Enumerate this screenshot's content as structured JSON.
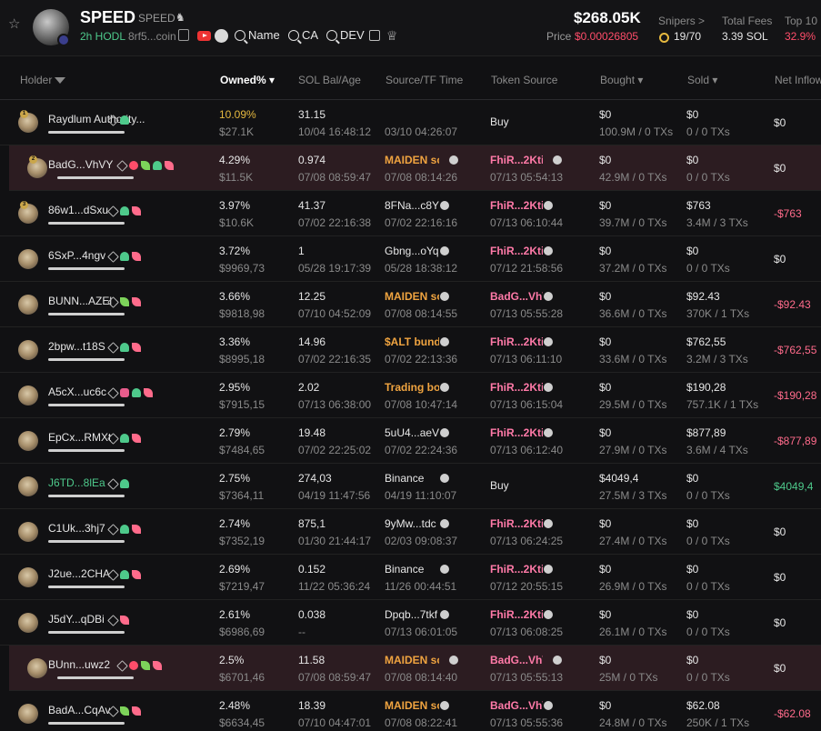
{
  "token": {
    "name": "SPEED",
    "symbol": "SPEED",
    "hodl": "2h HODL",
    "address": "8rf5...coin",
    "buttons": [
      "Name",
      "CA",
      "DEV"
    ]
  },
  "stats": {
    "market_cap": "$268.05K",
    "price_label": "Price",
    "price": "$0.00026805",
    "snipers_label": "Snipers >",
    "snipers_value": "19",
    "snipers_total": "/70",
    "fees_label": "Total Fees",
    "fees_value": "3.39 SOL",
    "top10_label": "Top 10",
    "top10_value": "32.9%"
  },
  "columns": {
    "holder": "Holder",
    "owned": "Owned% ▾",
    "sol_bal": "SOL Bal/Age",
    "source": "Source/TF Time",
    "token_source": "Token Source",
    "bought": "Bought ▾",
    "sold": "Sold ▾",
    "net_inflow": "Net Inflow"
  },
  "rows": [
    {
      "rank": "1",
      "name": "Raydlum Authority...",
      "name_style": "",
      "tags": [
        "edit",
        "user"
      ],
      "owned": "10.09%",
      "owned_style": "gold",
      "usd": "$27.1K",
      "sol": "31.15",
      "age": "10/04 16:48:12",
      "source": "",
      "source_style": "",
      "tf": "03/10 04:26:07",
      "tsrc": "Buy",
      "tsrc_style": "plain",
      "tst": "",
      "bought": "$0",
      "btx": "100.9M / 0 TXs",
      "sold": "$0",
      "stx": "0 / 0 TXs",
      "net": "$0",
      "net_style": "",
      "hl": false
    },
    {
      "rank": "2",
      "name": "BadG...VhVY",
      "name_style": "",
      "tags": [
        "edit",
        "red",
        "leaf",
        "user",
        "pink"
      ],
      "owned": "4.29%",
      "owned_style": "",
      "usd": "$11.5K",
      "sol": "0.974",
      "age": "07/08 08:59:47",
      "source": "MAIDEN sc",
      "source_style": "orange",
      "tf": "07/08 08:14:26",
      "tsrc": "FhiR...2Kti",
      "tsrc_style": "",
      "tst": "07/13 05:54:13",
      "bought": "$0",
      "btx": "42.9M / 0 TXs",
      "sold": "$0",
      "stx": "0 / 0 TXs",
      "net": "$0",
      "net_style": "",
      "hl": true
    },
    {
      "rank": "3",
      "name": "86w1...dSxu",
      "name_style": "",
      "tags": [
        "edit",
        "user",
        "pink"
      ],
      "owned": "3.97%",
      "owned_style": "",
      "usd": "$10.6K",
      "sol": "41.37",
      "age": "07/02 22:16:38",
      "source": "8FNa...c8Y",
      "source_style": "",
      "tf": "07/02 22:16:16",
      "tsrc": "FhiR...2Kti",
      "tsrc_style": "",
      "tst": "07/13 06:10:44",
      "bought": "$0",
      "btx": "39.7M / 0 TXs",
      "sold": "$763",
      "stx": "3.4M / 3 TXs",
      "net": "-$763",
      "net_style": "neg",
      "hl": false
    },
    {
      "rank": "",
      "name": "6SxP...4ngv",
      "name_style": "",
      "tags": [
        "edit",
        "user",
        "pink"
      ],
      "owned": "3.72%",
      "owned_style": "",
      "usd": "$9969,73",
      "sol": "1",
      "age": "05/28 19:17:39",
      "source": "Gbng...oYq",
      "source_style": "",
      "tf": "05/28 18:38:12",
      "tsrc": "FhiR...2Kti",
      "tsrc_style": "",
      "tst": "07/12 21:58:56",
      "bought": "$0",
      "btx": "37.2M / 0 TXs",
      "sold": "$0",
      "stx": "0 / 0 TXs",
      "net": "$0",
      "net_style": "",
      "hl": false
    },
    {
      "rank": "",
      "name": "BUNN...AZEl",
      "name_style": "",
      "tags": [
        "edit",
        "leaf",
        "pink"
      ],
      "owned": "3.66%",
      "owned_style": "",
      "usd": "$9818,98",
      "sol": "12.25",
      "age": "07/10 04:52:09",
      "source": "MAIDEN sc",
      "source_style": "orange",
      "tf": "07/08 08:14:55",
      "tsrc": "BadG...Vh\\",
      "tsrc_style": "",
      "tst": "07/13 05:55:28",
      "bought": "$0",
      "btx": "36.6M / 0 TXs",
      "sold": "$92.43",
      "stx": "370K / 1 TXs",
      "net": "-$92.43",
      "net_style": "neg",
      "hl": false
    },
    {
      "rank": "",
      "name": "2bpw...t18S",
      "name_style": "",
      "tags": [
        "edit",
        "user",
        "pink"
      ],
      "owned": "3.36%",
      "owned_style": "",
      "usd": "$8995,18",
      "sol": "14.96",
      "age": "07/02 22:16:35",
      "source": "$ALT bund",
      "source_style": "orange",
      "tf": "07/02 22:13:36",
      "tsrc": "FhiR...2Kti",
      "tsrc_style": "",
      "tst": "07/13 06:11:10",
      "bought": "$0",
      "btx": "33.6M / 0 TXs",
      "sold": "$762,55",
      "stx": "3.2M / 3 TXs",
      "net": "-$762,55",
      "net_style": "neg",
      "hl": false
    },
    {
      "rank": "",
      "name": "A5cX...uc6c",
      "name_style": "",
      "tags": [
        "edit",
        "mask",
        "user",
        "pink"
      ],
      "owned": "2.95%",
      "owned_style": "",
      "usd": "$7915,15",
      "sol": "2.02",
      "age": "07/13 06:38:00",
      "source": "Trading bo",
      "source_style": "orange",
      "tf": "07/08 10:47:14",
      "tsrc": "FhiR...2Kti",
      "tsrc_style": "",
      "tst": "07/13 06:15:04",
      "bought": "$0",
      "btx": "29.5M / 0 TXs",
      "sold": "$190,28",
      "stx": "757.1K / 1 TXs",
      "net": "-$190,28",
      "net_style": "neg",
      "hl": false
    },
    {
      "rank": "",
      "name": "EpCx...RMXt",
      "name_style": "",
      "tags": [
        "edit",
        "user",
        "pink"
      ],
      "owned": "2.79%",
      "owned_style": "",
      "usd": "$7484,65",
      "sol": "19.48",
      "age": "07/02 22:25:02",
      "source": "5uU4...aeV",
      "source_style": "",
      "tf": "07/02 22:24:36",
      "tsrc": "FhiR...2Kti",
      "tsrc_style": "",
      "tst": "07/13 06:12:40",
      "bought": "$0",
      "btx": "27.9M / 0 TXs",
      "sold": "$877,89",
      "stx": "3.6M / 4 TXs",
      "net": "-$877,89",
      "net_style": "neg",
      "hl": false
    },
    {
      "rank": "",
      "name": "J6TD...8lEa",
      "name_style": "green",
      "tags": [
        "edit",
        "user"
      ],
      "owned": "2.75%",
      "owned_style": "",
      "usd": "$7364,11",
      "sol": "274,03",
      "age": "04/19 11:47:56",
      "source": "Binance",
      "source_style": "",
      "tf": "04/19 11:10:07",
      "tsrc": "Buy",
      "tsrc_style": "plain",
      "tst": "",
      "bought": "$4049,4",
      "btx": "27.5M / 3 TXs",
      "sold": "$0",
      "stx": "0 / 0 TXs",
      "net": "$4049,4",
      "net_style": "pos",
      "hl": false
    },
    {
      "rank": "",
      "name": "C1Uk...3hj7",
      "name_style": "",
      "tags": [
        "edit",
        "user",
        "pink"
      ],
      "owned": "2.74%",
      "owned_style": "",
      "usd": "$7352,19",
      "sol": "875,1",
      "age": "01/30 21:44:17",
      "source": "9yMw...tdc",
      "source_style": "",
      "tf": "02/03 09:08:37",
      "tsrc": "FhiR...2Kti",
      "tsrc_style": "",
      "tst": "07/13 06:24:25",
      "bought": "$0",
      "btx": "27.4M / 0 TXs",
      "sold": "$0",
      "stx": "0 / 0 TXs",
      "net": "$0",
      "net_style": "",
      "hl": false
    },
    {
      "rank": "",
      "name": "J2ue...2CHA",
      "name_style": "",
      "tags": [
        "edit",
        "user",
        "pink"
      ],
      "owned": "2.69%",
      "owned_style": "",
      "usd": "$7219,47",
      "sol": "0.152",
      "age": "11/22 05:36:24",
      "source": "Binance",
      "source_style": "",
      "tf": "11/26 00:44:51",
      "tsrc": "FhiR...2Kti",
      "tsrc_style": "",
      "tst": "07/12 20:55:15",
      "bought": "$0",
      "btx": "26.9M / 0 TXs",
      "sold": "$0",
      "stx": "0 / 0 TXs",
      "net": "$0",
      "net_style": "",
      "hl": false
    },
    {
      "rank": "",
      "name": "J5dY...qDBi",
      "name_style": "",
      "tags": [
        "edit",
        "pink"
      ],
      "owned": "2.61%",
      "owned_style": "",
      "usd": "$6986,69",
      "sol": "0.038",
      "age": "--",
      "source": "Dpqb...7tkf",
      "source_style": "",
      "tf": "07/13 06:01:05",
      "tsrc": "FhiR...2Kti",
      "tsrc_style": "",
      "tst": "07/13 06:08:25",
      "bought": "$0",
      "btx": "26.1M / 0 TXs",
      "sold": "$0",
      "stx": "0 / 0 TXs",
      "net": "$0",
      "net_style": "",
      "hl": false
    },
    {
      "rank": "",
      "name": "BUnn...uwz2",
      "name_style": "",
      "tags": [
        "edit",
        "red",
        "leaf",
        "pink"
      ],
      "owned": "2.5%",
      "owned_style": "",
      "usd": "$6701,46",
      "sol": "11.58",
      "age": "07/08 08:59:47",
      "source": "MAIDEN sc",
      "source_style": "orange",
      "tf": "07/08 08:14:40",
      "tsrc": "BadG...Vh\\",
      "tsrc_style": "",
      "tst": "07/13 05:55:13",
      "bought": "$0",
      "btx": "25M / 0 TXs",
      "sold": "$0",
      "stx": "0 / 0 TXs",
      "net": "$0",
      "net_style": "",
      "hl": true
    },
    {
      "rank": "",
      "name": "BadA...CqAv",
      "name_style": "",
      "tags": [
        "edit",
        "leaf",
        "pink"
      ],
      "owned": "2.48%",
      "owned_style": "",
      "usd": "$6634,45",
      "sol": "18.39",
      "age": "07/10 04:47:01",
      "source": "MAIDEN sc",
      "source_style": "orange",
      "tf": "07/08 08:22:41",
      "tsrc": "BadG...Vh\\",
      "tsrc_style": "",
      "tst": "07/13 05:55:36",
      "bought": "$0",
      "btx": "24.8M / 0 TXs",
      "sold": "$62.08",
      "stx": "250K / 1 TXs",
      "net": "-$62.08",
      "net_style": "neg",
      "hl": false
    }
  ]
}
